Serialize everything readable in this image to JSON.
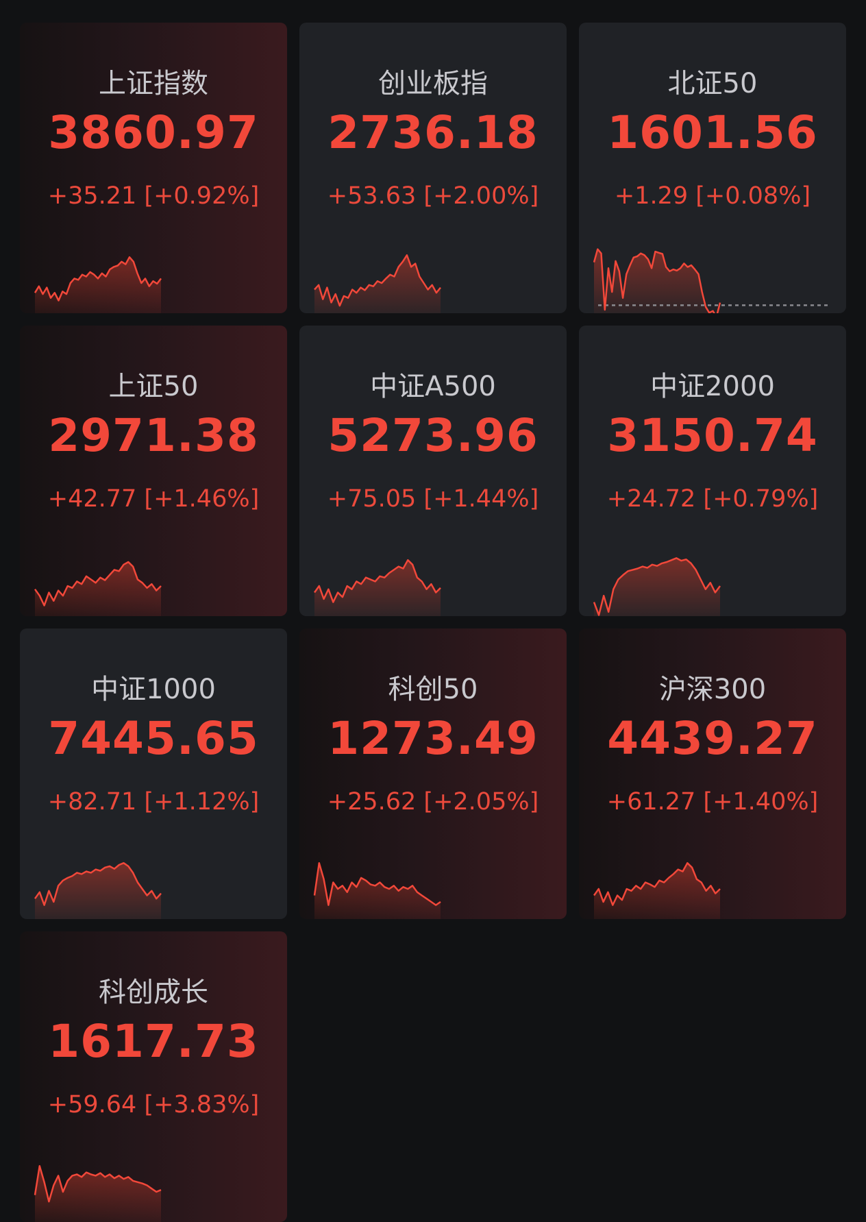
{
  "colors": {
    "up": "#f2483a",
    "background": "#111214",
    "card": "#202226",
    "baseline": "#8a8a90"
  },
  "indices": [
    {
      "name": "上证指数",
      "value": "3860.97",
      "change": "+35.21",
      "pct": "[+0.92%]",
      "highlight": true,
      "sparkline": {
        "range": [
          -10,
          100
        ],
        "prev_close": -10,
        "points": [
          30,
          40,
          28,
          38,
          22,
          30,
          18,
          32,
          28,
          45,
          52,
          50,
          58,
          55,
          62,
          58,
          52,
          60,
          55,
          66,
          70,
          72,
          78,
          74,
          85,
          78,
          60,
          45,
          52,
          40,
          48,
          44,
          52
        ]
      }
    },
    {
      "name": "创业板指",
      "value": "2736.18",
      "change": "+53.63",
      "pct": "[+2.00%]",
      "highlight": false,
      "sparkline": {
        "range": [
          -10,
          100
        ],
        "prev_close": -10,
        "points": [
          35,
          42,
          20,
          38,
          15,
          28,
          10,
          25,
          22,
          35,
          30,
          38,
          34,
          42,
          40,
          48,
          45,
          52,
          58,
          55,
          70,
          78,
          88,
          70,
          75,
          55,
          45,
          35,
          42,
          30,
          38
        ]
      }
    },
    {
      "name": "北证50",
      "value": "1601.56",
      "change": "+1.29",
      "pct": "[+0.08%]",
      "highlight": false,
      "sparkline": {
        "range": [
          -25,
          95
        ],
        "prev_close": 0,
        "points": [
          70,
          92,
          85,
          -10,
          60,
          20,
          72,
          55,
          10,
          50,
          65,
          78,
          80,
          85,
          82,
          75,
          60,
          88,
          86,
          84,
          62,
          55,
          58,
          56,
          60,
          68,
          62,
          65,
          58,
          50,
          20,
          -5,
          -15,
          -12,
          -22,
          2
        ]
      }
    },
    {
      "name": "上证50",
      "value": "2971.38",
      "change": "+42.77",
      "pct": "[+1.46%]",
      "highlight": true,
      "sparkline": {
        "range": [
          -10,
          100
        ],
        "prev_close": -10,
        "points": [
          40,
          30,
          15,
          35,
          22,
          38,
          30,
          45,
          42,
          52,
          48,
          60,
          55,
          50,
          58,
          54,
          62,
          70,
          68,
          78,
          82,
          75,
          55,
          50,
          42,
          48,
          38,
          45
        ]
      }
    },
    {
      "name": "中证A500",
      "value": "5273.96",
      "change": "+75.05",
      "pct": "[+1.44%]",
      "highlight": false,
      "sparkline": {
        "range": [
          -10,
          100
        ],
        "prev_close": -10,
        "points": [
          35,
          45,
          25,
          40,
          20,
          35,
          28,
          45,
          40,
          52,
          48,
          58,
          55,
          52,
          60,
          58,
          65,
          70,
          75,
          72,
          85,
          78,
          58,
          52,
          40,
          48,
          35,
          42
        ]
      }
    },
    {
      "name": "中证2000",
      "value": "3150.74",
      "change": "+24.72",
      "pct": "[+0.79%]",
      "highlight": false,
      "sparkline": {
        "range": [
          -10,
          100
        ],
        "prev_close": -10,
        "points": [
          20,
          0,
          30,
          5,
          40,
          55,
          62,
          68,
          70,
          72,
          75,
          73,
          78,
          76,
          80,
          82,
          85,
          88,
          84,
          86,
          80,
          70,
          55,
          40,
          50,
          35,
          45
        ]
      }
    },
    {
      "name": "中证1000",
      "value": "7445.65",
      "change": "+82.71",
      "pct": "[+1.12%]",
      "highlight": false,
      "sparkline": {
        "range": [
          -10,
          100
        ],
        "prev_close": -10,
        "points": [
          30,
          40,
          20,
          42,
          25,
          50,
          58,
          62,
          65,
          70,
          68,
          72,
          70,
          75,
          73,
          78,
          80,
          76,
          82,
          85,
          80,
          70,
          55,
          45,
          35,
          42,
          30,
          38
        ]
      }
    },
    {
      "name": "科创50",
      "value": "1273.49",
      "change": "+25.62",
      "pct": "[+2.05%]",
      "highlight": true,
      "sparkline": {
        "range": [
          -10,
          100
        ],
        "prev_close": -10,
        "points": [
          35,
          85,
          60,
          20,
          55,
          45,
          50,
          40,
          55,
          48,
          62,
          58,
          52,
          50,
          55,
          48,
          45,
          50,
          42,
          48,
          45,
          50,
          40,
          35,
          30,
          25,
          20,
          25
        ]
      }
    },
    {
      "name": "沪深300",
      "value": "4439.27",
      "change": "+61.27",
      "pct": "[+1.40%]",
      "highlight": true,
      "sparkline": {
        "range": [
          -10,
          100
        ],
        "prev_close": -10,
        "points": [
          35,
          45,
          25,
          40,
          20,
          35,
          28,
          45,
          42,
          50,
          45,
          55,
          52,
          48,
          58,
          55,
          62,
          68,
          75,
          72,
          85,
          78,
          60,
          55,
          42,
          50,
          38,
          45
        ]
      }
    },
    {
      "name": "科创成长",
      "value": "1617.73",
      "change": "+59.64",
      "pct": "[+3.83%]",
      "highlight": true,
      "sparkline": {
        "range": [
          -10,
          100
        ],
        "prev_close": -10,
        "points": [
          40,
          85,
          60,
          30,
          55,
          70,
          45,
          62,
          70,
          72,
          68,
          75,
          72,
          70,
          74,
          68,
          72,
          66,
          70,
          65,
          68,
          62,
          60,
          58,
          55,
          50,
          45,
          48
        ]
      }
    }
  ]
}
